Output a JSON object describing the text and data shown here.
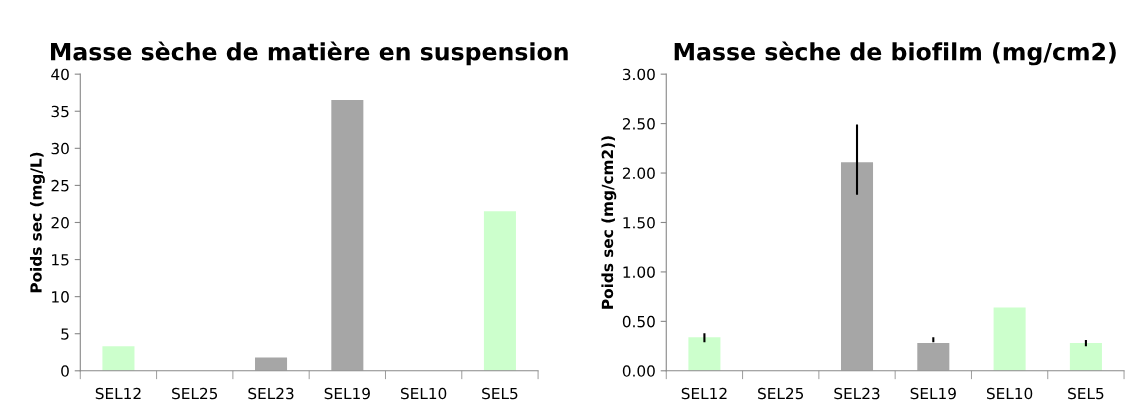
{
  "chart_data": [
    {
      "type": "bar",
      "title": "Masse sèche de matière en suspension",
      "ylabel": "Poids sec (mg/L)",
      "categories": [
        "SEL12",
        "SEL25",
        "SEL23",
        "SEL19",
        "SEL10",
        "SEL5"
      ],
      "values": [
        3.3,
        null,
        1.8,
        36.5,
        null,
        21.5
      ],
      "colors": [
        "#ccffcc",
        "#ccffcc",
        "#a6a6a6",
        "#a6a6a6",
        "#ccffcc",
        "#ccffcc"
      ],
      "ylim": [
        0,
        40
      ],
      "yticks": [
        0,
        5,
        10,
        15,
        20,
        25,
        30,
        35,
        40
      ],
      "grid": false,
      "legend": false
    },
    {
      "type": "bar",
      "title": "Masse sèche de biofilm (mg/cm2)",
      "ylabel": "Poids sec (mg/cm2))",
      "categories": [
        "SEL12",
        "SEL25",
        "SEL23",
        "SEL19",
        "SEL10",
        "SEL5"
      ],
      "values": [
        0.34,
        null,
        2.11,
        0.28,
        0.64,
        0.28
      ],
      "errors": [
        [
          0.3,
          0.37
        ],
        null,
        [
          1.79,
          2.48
        ],
        [
          0.3,
          0.33
        ],
        null,
        [
          0.26,
          0.3
        ]
      ],
      "colors": [
        "#ccffcc",
        "#ccffcc",
        "#a6a6a6",
        "#a6a6a6",
        "#ccffcc",
        "#ccffcc"
      ],
      "ylim": [
        0,
        3
      ],
      "yticks": [
        {
          "value": 0,
          "label": "0.00"
        },
        {
          "value": 0.5,
          "label": "0.50"
        },
        {
          "value": 1,
          "label": "1.00"
        },
        {
          "value": 1.5,
          "label": "1.50"
        },
        {
          "value": 2,
          "label": "2.00"
        },
        {
          "value": 2.5,
          "label": "2.50"
        },
        {
          "value": 3,
          "label": "3.00"
        }
      ],
      "grid": false,
      "legend": false
    }
  ]
}
